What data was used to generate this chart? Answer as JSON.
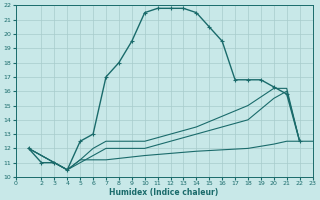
{
  "xlabel": "Humidex (Indice chaleur)",
  "xlim": [
    0,
    23
  ],
  "ylim": [
    10,
    22
  ],
  "xticks": [
    0,
    2,
    3,
    4,
    5,
    6,
    7,
    8,
    9,
    10,
    11,
    12,
    13,
    14,
    15,
    16,
    17,
    18,
    19,
    20,
    21,
    22,
    23
  ],
  "yticks": [
    10,
    11,
    12,
    13,
    14,
    15,
    16,
    17,
    18,
    19,
    20,
    21,
    22
  ],
  "bg_color": "#c8e8e8",
  "line_color": "#1a6b6b",
  "grid_color": "#a8cccc",
  "main_x": [
    1,
    2,
    3,
    4,
    5,
    6,
    7,
    8,
    9,
    10,
    11,
    12,
    13,
    14,
    15,
    16,
    17,
    18,
    19,
    20,
    21,
    22
  ],
  "main_y": [
    12,
    11,
    11,
    10.5,
    12.5,
    13,
    17,
    18,
    19.5,
    21.5,
    21.8,
    21.8,
    21.8,
    21.5,
    20.5,
    19.5,
    16.8,
    16.8,
    16.8,
    16.3,
    15.8,
    12.5
  ],
  "line2_x": [
    1,
    3,
    4,
    5,
    6,
    7,
    10,
    14,
    18,
    20,
    21,
    22
  ],
  "line2_y": [
    12,
    11,
    10.5,
    11.2,
    12,
    12.5,
    12.5,
    13.5,
    15,
    16.2,
    16.2,
    12.5
  ],
  "line3_x": [
    1,
    3,
    4,
    5,
    6,
    7,
    10,
    14,
    18,
    20,
    21,
    22
  ],
  "line3_y": [
    12,
    11,
    10.5,
    11,
    11.5,
    12,
    12,
    13,
    14,
    15.5,
    16,
    12.5
  ],
  "line4_x": [
    1,
    3,
    4,
    5,
    7,
    10,
    14,
    18,
    20,
    21,
    22,
    23
  ],
  "line4_y": [
    12,
    11,
    10.5,
    11.2,
    11.2,
    11.5,
    11.8,
    12,
    12.3,
    12.5,
    12.5,
    12.5
  ]
}
